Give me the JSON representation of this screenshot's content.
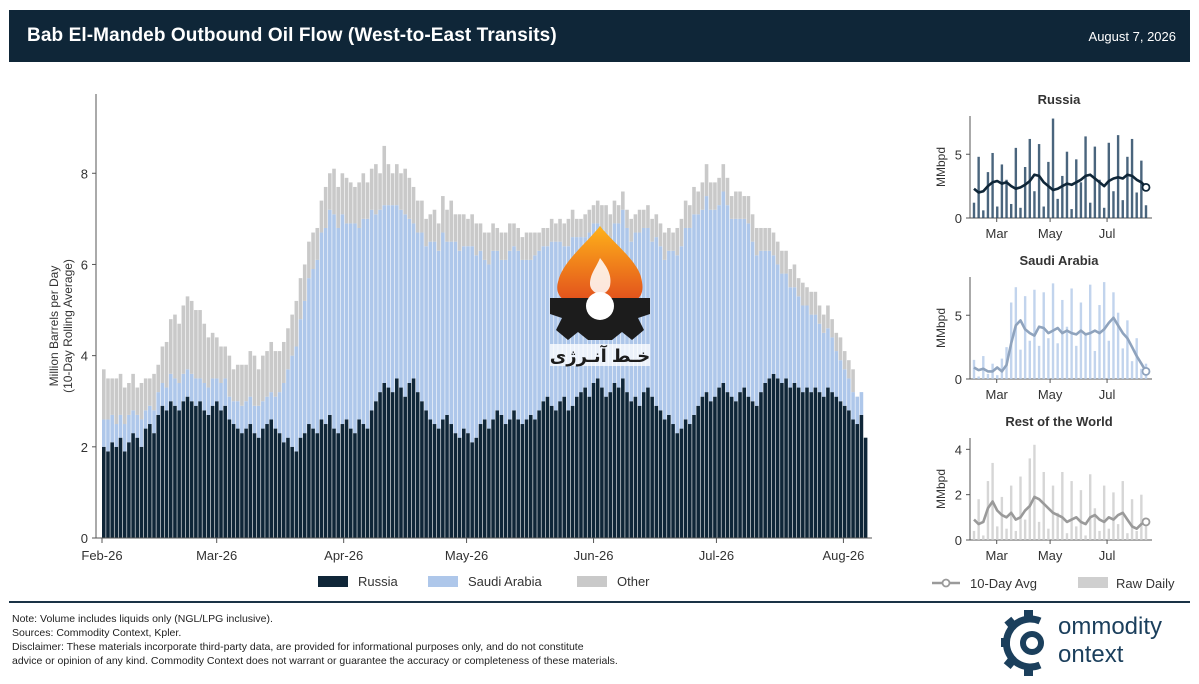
{
  "header": {
    "title": "Bab El-Mandeb Outbound Oil Flow (West-to-East Transits)",
    "date": "August 7, 2026"
  },
  "colors": {
    "russia": "#0f2638",
    "saudi": "#aec7ea",
    "other": "#c9c9c9",
    "header_bg": "#0f2638",
    "avg_line_russia": "#0f2638",
    "avg_line_saudi": "#8fa3bd",
    "avg_line_row": "#9a9a9a"
  },
  "chart_data": [
    {
      "type": "bar",
      "stacked": true,
      "ylabel": "Million Barrels per Day\n(10-Day Rolling Average)",
      "ylim": [
        0,
        9.3
      ],
      "yticks": [
        0,
        2,
        4,
        6,
        8
      ],
      "x_tick_labels": [
        "Feb-26",
        "Mar-26",
        "Apr-26",
        "May-26",
        "Jun-26",
        "Jul-26",
        "Aug-26"
      ],
      "x_start": "2026-02-01",
      "x_end": "2026-08-07",
      "grid": false,
      "legend_placement": "bottom",
      "series": [
        {
          "name": "Russia",
          "values": [
            2.0,
            1.9,
            2.1,
            2.0,
            2.2,
            1.9,
            2.1,
            2.3,
            2.2,
            2.0,
            2.4,
            2.5,
            2.3,
            2.7,
            2.9,
            2.8,
            3.0,
            2.9,
            2.8,
            3.0,
            3.1,
            3.0,
            2.9,
            3.0,
            2.8,
            2.7,
            2.9,
            3.0,
            2.8,
            2.9,
            2.6,
            2.5,
            2.4,
            2.3,
            2.4,
            2.5,
            2.3,
            2.2,
            2.4,
            2.5,
            2.6,
            2.4,
            2.3,
            2.1,
            2.2,
            2.0,
            1.9,
            2.2,
            2.3,
            2.5,
            2.4,
            2.3,
            2.6,
            2.5,
            2.7,
            2.4,
            2.3,
            2.5,
            2.6,
            2.4,
            2.3,
            2.6,
            2.5,
            2.4,
            2.8,
            3.0,
            3.2,
            3.4,
            3.3,
            3.2,
            3.5,
            3.3,
            3.1,
            3.4,
            3.5,
            3.2,
            3.0,
            2.8,
            2.6,
            2.5,
            2.4,
            2.6,
            2.7,
            2.5,
            2.3,
            2.2,
            2.4,
            2.3,
            2.1,
            2.2,
            2.5,
            2.6,
            2.4,
            2.6,
            2.8,
            2.7,
            2.5,
            2.6,
            2.8,
            2.6,
            2.5,
            2.6,
            2.7,
            2.6,
            2.8,
            3.0,
            3.1,
            2.9,
            2.8,
            3.0,
            3.1,
            2.8,
            2.9,
            3.1,
            3.2,
            3.3,
            3.1,
            3.4,
            3.5,
            3.3,
            3.1,
            3.2,
            3.4,
            3.3,
            3.5,
            3.2,
            3.0,
            3.1,
            2.9,
            3.2,
            3.3,
            3.1,
            2.9,
            2.8,
            2.6,
            2.7,
            2.5,
            2.3,
            2.4,
            2.6,
            2.5,
            2.7,
            2.9,
            3.1,
            3.2,
            3.0,
            3.1,
            3.3,
            3.4,
            3.2,
            3.1,
            3.0,
            3.2,
            3.3,
            3.1,
            3.0,
            2.9,
            3.2,
            3.4,
            3.5,
            3.6,
            3.5,
            3.4,
            3.5,
            3.3,
            3.4,
            3.3,
            3.2,
            3.3,
            3.2,
            3.3,
            3.2,
            3.1,
            3.3,
            3.2,
            3.1,
            3.0,
            2.9,
            2.8,
            2.6,
            2.5,
            2.7,
            2.2
          ]
        },
        {
          "name": "Saudi Arabia",
          "values": [
            0.6,
            0.7,
            0.6,
            0.5,
            0.5,
            0.6,
            0.6,
            0.5,
            0.5,
            0.6,
            0.4,
            0.4,
            0.5,
            0.5,
            0.5,
            0.5,
            0.6,
            0.6,
            0.6,
            0.6,
            0.6,
            0.6,
            0.6,
            0.5,
            0.6,
            0.6,
            0.6,
            0.5,
            0.6,
            0.6,
            0.5,
            0.5,
            0.6,
            0.6,
            0.6,
            0.6,
            0.6,
            0.7,
            0.6,
            0.6,
            0.6,
            0.7,
            0.9,
            1.3,
            1.5,
            2.0,
            2.3,
            2.6,
            2.9,
            3.2,
            3.5,
            3.8,
            4.1,
            4.3,
            4.5,
            4.7,
            4.5,
            4.6,
            4.3,
            4.5,
            4.6,
            4.2,
            4.5,
            4.6,
            4.4,
            4.1,
            4.0,
            3.9,
            4.0,
            4.1,
            3.8,
            3.9,
            4.0,
            3.6,
            3.4,
            3.5,
            3.7,
            3.6,
            3.9,
            4.0,
            3.9,
            4.1,
            3.8,
            4.0,
            4.2,
            4.1,
            4.0,
            4.1,
            4.3,
            4.0,
            3.8,
            3.5,
            3.6,
            3.7,
            3.5,
            3.4,
            3.6,
            3.7,
            3.6,
            3.7,
            3.6,
            3.5,
            3.4,
            3.6,
            3.5,
            3.4,
            3.3,
            3.6,
            3.7,
            3.5,
            3.3,
            3.6,
            3.7,
            3.5,
            3.4,
            3.3,
            3.6,
            3.5,
            3.4,
            3.5,
            3.6,
            3.4,
            3.5,
            3.6,
            3.7,
            3.6,
            3.5,
            3.6,
            3.8,
            3.6,
            3.5,
            3.4,
            3.7,
            3.6,
            3.5,
            3.6,
            3.8,
            3.9,
            4.0,
            4.2,
            4.3,
            4.4,
            4.2,
            4.1,
            4.3,
            4.2,
            4.1,
            4.0,
            4.2,
            4.1,
            3.9,
            4.0,
            3.8,
            3.7,
            3.8,
            3.5,
            3.3,
            3.1,
            2.9,
            2.8,
            2.6,
            2.5,
            2.4,
            2.3,
            2.2,
            2.1,
            2.0,
            1.9,
            1.8,
            1.7,
            1.6,
            1.5,
            1.4,
            1.3,
            1.2,
            1.0,
            0.9,
            0.8,
            0.7,
            0.6,
            0.6,
            0.5
          ]
        },
        {
          "name": "Other",
          "values": [
            1.1,
            0.9,
            0.8,
            1.0,
            0.9,
            0.8,
            0.7,
            0.8,
            0.6,
            0.8,
            0.7,
            0.6,
            0.8,
            0.6,
            0.8,
            1.0,
            1.2,
            1.4,
            1.3,
            1.5,
            1.6,
            1.6,
            1.5,
            1.5,
            1.3,
            1.1,
            1.0,
            0.9,
            0.8,
            0.7,
            0.9,
            0.7,
            0.8,
            0.9,
            0.8,
            1.0,
            1.1,
            0.8,
            1.0,
            1.0,
            1.1,
            1.0,
            0.9,
            0.9,
            0.9,
            0.9,
            1.0,
            0.9,
            0.8,
            0.8,
            0.8,
            0.7,
            0.7,
            0.9,
            0.8,
            1.0,
            0.9,
            0.9,
            1.0,
            0.9,
            0.8,
            1.0,
            1.0,
            0.8,
            0.9,
            1.1,
            0.8,
            1.3,
            0.9,
            0.7,
            0.9,
            0.8,
            1.0,
            0.9,
            0.8,
            0.7,
            0.7,
            0.6,
            0.6,
            0.7,
            0.6,
            0.8,
            0.7,
            0.9,
            0.6,
            0.8,
            0.7,
            0.6,
            0.7,
            0.7,
            0.6,
            0.6,
            0.7,
            0.6,
            0.5,
            0.6,
            0.6,
            0.6,
            0.5,
            0.5,
            0.5,
            0.6,
            0.6,
            0.5,
            0.4,
            0.4,
            0.4,
            0.5,
            0.4,
            0.5,
            0.5,
            0.6,
            0.6,
            0.4,
            0.4,
            0.5,
            0.5,
            0.4,
            0.5,
            0.5,
            0.6,
            0.5,
            0.5,
            0.4,
            0.4,
            0.4,
            0.5,
            0.4,
            0.5,
            0.4,
            0.5,
            0.5,
            0.5,
            0.5,
            0.6,
            0.5,
            0.4,
            0.6,
            0.6,
            0.6,
            0.5,
            0.6,
            0.5,
            0.6,
            0.7,
            0.6,
            0.6,
            0.6,
            0.6,
            0.6,
            0.5,
            0.6,
            0.6,
            0.5,
            0.6,
            0.6,
            0.6,
            0.5,
            0.5,
            0.5,
            0.5,
            0.5,
            0.5,
            0.5,
            0.4,
            0.5,
            0.4,
            0.5,
            0.4,
            0.5,
            0.5,
            0.4,
            0.4,
            0.5,
            0.4,
            0.4,
            0.5,
            0.4,
            0.4,
            0.5
          ]
        }
      ]
    },
    {
      "type": "line",
      "title": "Russia",
      "ylabel": "MMbpd",
      "ylim": [
        0,
        8
      ],
      "yticks": [
        0,
        5
      ],
      "x_tick_labels": [
        "Mar",
        "May",
        "Jul"
      ],
      "series": [
        {
          "name": "10-Day Avg",
          "values": [
            2.3,
            2.0,
            2.1,
            2.5,
            2.8,
            2.9,
            2.7,
            2.8,
            2.5,
            2.3,
            2.4,
            2.6,
            2.9,
            3.4,
            3.3,
            2.8,
            2.5,
            2.2,
            2.3,
            2.5,
            2.7,
            2.6,
            2.8,
            3.0,
            3.3,
            3.4,
            3.1,
            2.8,
            2.5,
            2.9,
            3.1,
            3.2,
            3.1,
            3.4,
            3.3,
            3.0,
            2.8,
            2.4
          ]
        },
        {
          "name": "Raw Daily",
          "values": [
            1.2,
            4.8,
            0.6,
            3.6,
            5.1,
            0.9,
            4.2,
            3.0,
            1.1,
            5.5,
            0.8,
            4.0,
            6.2,
            2.1,
            5.8,
            0.9,
            4.4,
            7.8,
            1.5,
            3.3,
            5.2,
            0.7,
            4.6,
            2.8,
            6.4,
            1.2,
            5.6,
            3.0,
            0.8,
            5.9,
            2.1,
            6.5,
            1.4,
            4.8,
            6.2,
            2.0,
            4.5,
            1.0
          ]
        }
      ]
    },
    {
      "type": "line",
      "title": "Saudi Arabia",
      "ylabel": "MMbpd",
      "ylim": [
        0,
        8
      ],
      "yticks": [
        0,
        5
      ],
      "x_tick_labels": [
        "Mar",
        "May",
        "Jul"
      ],
      "series": [
        {
          "name": "10-Day Avg",
          "values": [
            0.9,
            0.7,
            0.8,
            0.6,
            0.6,
            0.9,
            0.6,
            1.1,
            2.8,
            4.2,
            4.6,
            3.9,
            3.6,
            3.4,
            4.1,
            4.0,
            3.6,
            3.8,
            4.0,
            3.6,
            3.8,
            3.6,
            3.5,
            3.8,
            3.5,
            3.6,
            3.8,
            3.6,
            3.9,
            4.4,
            4.8,
            4.2,
            3.6,
            3.2,
            2.5,
            1.8,
            1.2,
            0.6
          ]
        },
        {
          "name": "Raw Daily",
          "values": [
            1.5,
            0.2,
            1.8,
            0.4,
            1.2,
            0.3,
            1.6,
            2.5,
            6.0,
            7.2,
            2.3,
            6.5,
            3.0,
            7.0,
            2.6,
            6.8,
            3.2,
            7.5,
            2.8,
            6.2,
            4.1,
            7.1,
            2.6,
            6.0,
            3.5,
            7.4,
            2.2,
            5.8,
            7.6,
            3.0,
            6.8,
            5.2,
            2.4,
            4.6,
            1.4,
            3.2,
            0.8,
            1.2
          ]
        }
      ]
    },
    {
      "type": "line",
      "title": "Rest of the World",
      "ylabel": "MMbpd",
      "ylim": [
        0,
        4.5
      ],
      "yticks": [
        0,
        2,
        4
      ],
      "x_tick_labels": [
        "Mar",
        "May",
        "Jul"
      ],
      "series": [
        {
          "name": "10-Day Avg",
          "values": [
            0.9,
            0.7,
            0.8,
            1.4,
            1.7,
            1.3,
            1.1,
            1.0,
            1.2,
            0.9,
            1.0,
            1.3,
            1.5,
            1.9,
            1.8,
            1.6,
            1.4,
            1.2,
            1.1,
            1.0,
            0.8,
            0.9,
            1.0,
            0.8,
            0.7,
            1.0,
            1.1,
            0.9,
            0.8,
            1.0,
            0.9,
            1.1,
            1.2,
            0.9,
            0.6,
            0.5,
            0.7,
            0.8
          ]
        },
        {
          "name": "Raw Daily",
          "values": [
            0.4,
            1.8,
            0.2,
            2.6,
            3.4,
            0.6,
            1.9,
            0.5,
            2.4,
            0.4,
            2.8,
            0.9,
            3.6,
            4.2,
            0.8,
            3.0,
            0.5,
            2.4,
            1.2,
            3.0,
            0.3,
            2.6,
            0.6,
            2.2,
            0.2,
            2.9,
            1.4,
            0.4,
            2.4,
            0.5,
            2.1,
            0.7,
            2.6,
            0.3,
            1.8,
            0.4,
            2.0,
            0.9
          ]
        }
      ]
    }
  ],
  "panel_legend": {
    "avg_label": "10-Day Avg",
    "raw_label": "Raw Daily"
  },
  "footer": {
    "note": "Note: Volume includes liquids only (NGL/LPG inclusive).",
    "sources": "Sources: Commodity Context, Kpler.",
    "disclaimer_1": "Disclaimer: These materials incorporate third-party data, are provided for informational purposes only, and do not constitute",
    "disclaimer_2": "advice or opinion of any kind. Commodity Context does not warrant or guarantee the accuracy or completeness of these materials."
  },
  "logo": {
    "line1": "ommodity",
    "line2": "ontext"
  },
  "watermark": {
    "text": "خـط آنـرژی"
  }
}
